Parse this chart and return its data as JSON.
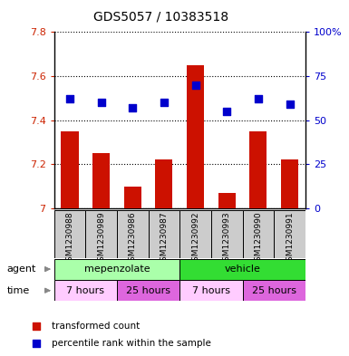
{
  "title": "GDS5057 / 10383518",
  "samples": [
    "GSM1230988",
    "GSM1230989",
    "GSM1230986",
    "GSM1230987",
    "GSM1230992",
    "GSM1230993",
    "GSM1230990",
    "GSM1230991"
  ],
  "bar_values": [
    7.35,
    7.25,
    7.1,
    7.22,
    7.65,
    7.07,
    7.35,
    7.22
  ],
  "dot_values": [
    62,
    60,
    57,
    60,
    70,
    55,
    62,
    59
  ],
  "bar_base": 7.0,
  "ylim": [
    7.0,
    7.8
  ],
  "y2lim": [
    0,
    100
  ],
  "yticks": [
    7.0,
    7.2,
    7.4,
    7.6,
    7.8
  ],
  "y2ticks": [
    0,
    25,
    50,
    75,
    100
  ],
  "y2ticklabels": [
    "0",
    "25",
    "50",
    "75",
    "100%"
  ],
  "bar_color": "#cc1100",
  "dot_color": "#0000cc",
  "agent_groups": [
    {
      "label": "mepenzolate",
      "start": 0,
      "end": 4,
      "color": "#aaffaa"
    },
    {
      "label": "vehicle",
      "start": 4,
      "end": 8,
      "color": "#33dd33"
    }
  ],
  "time_groups": [
    {
      "label": "7 hours",
      "start": 0,
      "end": 2,
      "color": "#ffccff"
    },
    {
      "label": "25 hours",
      "start": 2,
      "end": 4,
      "color": "#dd66dd"
    },
    {
      "label": "7 hours",
      "start": 4,
      "end": 6,
      "color": "#ffccff"
    },
    {
      "label": "25 hours",
      "start": 6,
      "end": 8,
      "color": "#dd66dd"
    }
  ],
  "legend_items": [
    {
      "label": "transformed count",
      "color": "#cc1100"
    },
    {
      "label": "percentile rank within the sample",
      "color": "#0000cc"
    }
  ],
  "xlabel_agent": "agent",
  "xlabel_time": "time",
  "tick_label_color": "#cc2200",
  "tick2_label_color": "#0000cc",
  "bar_width": 0.55,
  "dot_size": 35,
  "sample_box_color": "#cccccc",
  "title_fontsize": 10
}
